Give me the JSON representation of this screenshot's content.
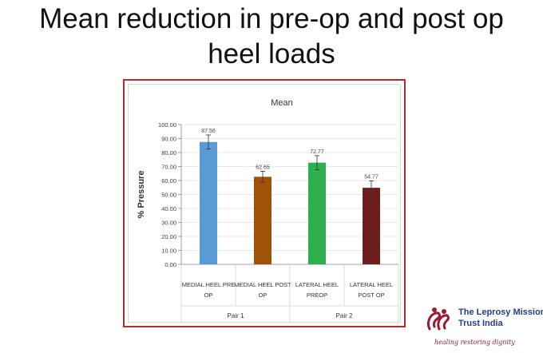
{
  "slide": {
    "title_line1": "Mean reduction in pre-op and post op",
    "title_line2": "heel loads"
  },
  "logo": {
    "name_line1": "The Leprosy Mission",
    "name_line2": "Trust India",
    "tagline": "healing restoring dignity"
  },
  "chart_data": {
    "type": "bar",
    "title": "Mean",
    "ylabel": "% Pressure",
    "xlabel": "",
    "ylim": [
      0,
      100
    ],
    "ytick_step": 10,
    "ytick_labels": [
      "0.00",
      "10.00",
      "20.00",
      "30.00",
      "40.00",
      "50.00",
      "60.00",
      "70.00",
      "80.00",
      "90.00",
      "100.00"
    ],
    "grid": true,
    "categories": [
      [
        "MEDIAL HEEL PRE",
        "OP"
      ],
      [
        "MEDIAL HEEL POST",
        "OP"
      ],
      [
        "LATERAL HEEL",
        "PREOP"
      ],
      [
        "LATERAL HEEL",
        "POST OP"
      ]
    ],
    "groups": [
      {
        "label": "Pair 1",
        "span": [
          0,
          1
        ]
      },
      {
        "label": "Pair 2",
        "span": [
          2,
          3
        ]
      }
    ],
    "values": [
      87.56,
      62.65,
      72.77,
      54.77
    ],
    "data_labels": [
      "87.56",
      "62.65",
      "72.77",
      "54.77"
    ],
    "errors": [
      5,
      4,
      5,
      5
    ],
    "colors": [
      "#5b9bd5",
      "#a0520a",
      "#2fb04f",
      "#6e1e1e"
    ],
    "colors_meaning": "bar fill per category"
  }
}
